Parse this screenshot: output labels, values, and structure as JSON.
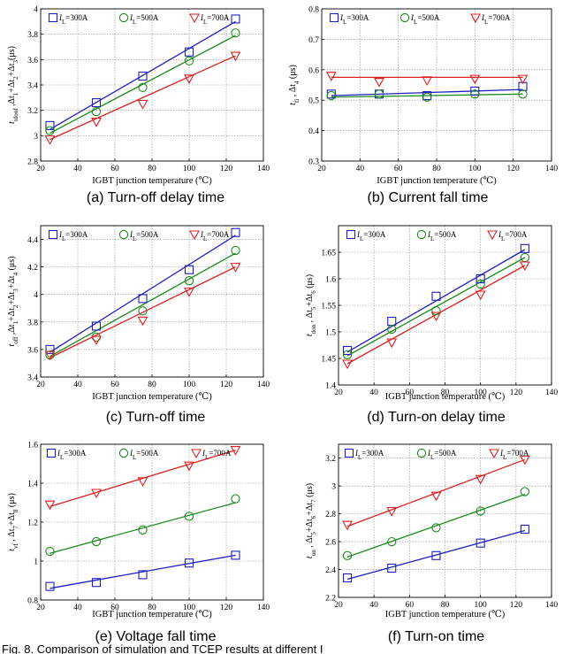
{
  "chart_data": [
    {
      "type": "scatter",
      "caption": "(a) Turn-off delay time",
      "xlabel": "IGBT junction temperature (℃)",
      "ylabel_parts": [
        {
          "t": "t",
          "it": true
        },
        {
          "t": "tdoof",
          "sub": true
        },
        {
          "t": " ,Δt"
        },
        {
          "t": "1",
          "sub": true
        },
        {
          "t": "+Δt"
        },
        {
          "t": "2",
          "sub": true
        },
        {
          "t": "+Δt"
        },
        {
          "t": "3",
          "sub": true
        },
        {
          "t": "(μs)"
        }
      ],
      "xlim": [
        20,
        140
      ],
      "ylim": [
        2.8,
        4
      ],
      "xticks": [
        20,
        40,
        60,
        80,
        100,
        120,
        140
      ],
      "yticks": [
        2.8,
        3,
        3.2,
        3.4,
        3.6,
        3.8,
        4
      ],
      "yticklabels": [
        "2.8",
        "3",
        "3.2",
        "3.4",
        "3.6",
        "3.8",
        "4"
      ],
      "grid": true,
      "legend_position": "top-left",
      "series": [
        {
          "name": "I_L=300A",
          "color": "#1f1fbf",
          "marker": "square",
          "x": [
            25,
            50,
            75,
            100,
            125
          ],
          "y": [
            3.08,
            3.26,
            3.47,
            3.66,
            3.92
          ],
          "fit": [
            [
              25,
              3.05
            ],
            [
              125,
              3.9
            ]
          ]
        },
        {
          "name": "I_L=500A",
          "color": "#1a8a1a",
          "marker": "circle",
          "x": [
            25,
            50,
            75,
            100,
            125
          ],
          "y": [
            3.04,
            3.19,
            3.38,
            3.59,
            3.81
          ],
          "fit": [
            [
              25,
              3.02
            ],
            [
              125,
              3.79
            ]
          ]
        },
        {
          "name": "I_L=700A",
          "color": "#e02020",
          "marker": "triangle",
          "x": [
            25,
            50,
            75,
            100,
            125
          ],
          "y": [
            2.97,
            3.11,
            3.25,
            3.45,
            3.63
          ],
          "fit": [
            [
              25,
              2.97
            ],
            [
              125,
              3.63
            ]
          ]
        }
      ]
    },
    {
      "type": "scatter",
      "caption": "(b) Current fall time",
      "xlabel": "IGBT junction temperature (℃)",
      "ylabel_parts": [
        {
          "t": "t",
          "it": true
        },
        {
          "t": "fi",
          "sub": true
        },
        {
          "t": " , Δt"
        },
        {
          "t": "4",
          "sub": true
        },
        {
          "t": " (μs)"
        }
      ],
      "xlim": [
        20,
        140
      ],
      "ylim": [
        0.3,
        0.8
      ],
      "xticks": [
        20,
        40,
        60,
        80,
        100,
        120,
        140
      ],
      "yticks": [
        0.3,
        0.4,
        0.5,
        0.6,
        0.7,
        0.8
      ],
      "yticklabels": [
        "0.3",
        "0.4",
        "0.5",
        "0.6",
        "0.7",
        "0.8"
      ],
      "grid": true,
      "legend_position": "top-left",
      "series": [
        {
          "name": "I_L=300A",
          "color": "#1f1fbf",
          "marker": "square",
          "x": [
            25,
            50,
            75,
            100,
            125
          ],
          "y": [
            0.52,
            0.52,
            0.515,
            0.53,
            0.545
          ],
          "fit": [
            [
              25,
              0.515
            ],
            [
              125,
              0.535
            ]
          ]
        },
        {
          "name": "I_L=500A",
          "color": "#1a8a1a",
          "marker": "circle",
          "x": [
            25,
            50,
            75,
            100,
            125
          ],
          "y": [
            0.515,
            0.52,
            0.51,
            0.52,
            0.52
          ],
          "fit": [
            [
              25,
              0.51
            ],
            [
              125,
              0.52
            ]
          ]
        },
        {
          "name": "I_L=700A",
          "color": "#e02020",
          "marker": "triangle",
          "x": [
            25,
            50,
            75,
            100,
            125
          ],
          "y": [
            0.58,
            0.56,
            0.565,
            0.57,
            0.57
          ],
          "fit": [
            [
              25,
              0.575
            ],
            [
              125,
              0.575
            ]
          ]
        }
      ]
    },
    {
      "type": "scatter",
      "caption": "(c) Turn-off time",
      "xlabel": "IGBT junction temperature (℃)",
      "ylabel_parts": [
        {
          "t": "t",
          "it": true
        },
        {
          "t": "off",
          "sub": true
        },
        {
          "t": " ,Δt"
        },
        {
          "t": "1",
          "sub": true
        },
        {
          "t": "+Δt"
        },
        {
          "t": "2",
          "sub": true
        },
        {
          "t": "+Δt"
        },
        {
          "t": "3",
          "sub": true
        },
        {
          "t": "+Δt"
        },
        {
          "t": "4",
          "sub": true
        },
        {
          "t": " (μs)"
        }
      ],
      "xlim": [
        20,
        140
      ],
      "ylim": [
        3.4,
        4.5
      ],
      "xticks": [
        20,
        40,
        60,
        80,
        100,
        120,
        140
      ],
      "yticks": [
        3.4,
        3.6,
        3.8,
        4,
        4.2,
        4.4
      ],
      "yticklabels": [
        "3.4",
        "3.6",
        "3.8",
        "4",
        "4.2",
        "4.4"
      ],
      "grid": true,
      "legend_position": "top-left",
      "series": [
        {
          "name": "I_L=300A",
          "color": "#1f1fbf",
          "marker": "square",
          "x": [
            25,
            50,
            75,
            100,
            125
          ],
          "y": [
            3.6,
            3.77,
            3.97,
            4.18,
            4.45
          ],
          "fit": [
            [
              25,
              3.58
            ],
            [
              125,
              4.43
            ]
          ]
        },
        {
          "name": "I_L=500A",
          "color": "#1a8a1a",
          "marker": "circle",
          "x": [
            25,
            50,
            75,
            100,
            125
          ],
          "y": [
            3.56,
            3.69,
            3.88,
            4.1,
            4.32
          ],
          "fit": [
            [
              25,
              3.55
            ],
            [
              125,
              4.3
            ]
          ]
        },
        {
          "name": "I_L=700A",
          "color": "#e02020",
          "marker": "triangle",
          "x": [
            25,
            50,
            75,
            100,
            125
          ],
          "y": [
            3.56,
            3.67,
            3.81,
            4.02,
            4.2
          ],
          "fit": [
            [
              25,
              3.54
            ],
            [
              125,
              4.2
            ]
          ]
        }
      ]
    },
    {
      "type": "scatter",
      "caption": "(d) Turn-on delay time",
      "xlabel": "IGBT junction temperature (℃)",
      "ylabel_parts": [
        {
          "t": "t",
          "it": true
        },
        {
          "t": "don",
          "sub": true
        },
        {
          "t": " , Δt"
        },
        {
          "t": "5",
          "sub": true
        },
        {
          "t": "+Δt"
        },
        {
          "t": "6",
          "sub": true
        },
        {
          "t": " (μs)"
        }
      ],
      "xlim": [
        20,
        140
      ],
      "ylim": [
        1.4,
        1.7
      ],
      "xticks": [
        20,
        40,
        60,
        80,
        100,
        120,
        140
      ],
      "yticks": [
        1.4,
        1.45,
        1.5,
        1.55,
        1.6,
        1.65
      ],
      "yticklabels": [
        "1.4",
        "1.45",
        "1.5",
        "1.55",
        "1.6",
        "1.65"
      ],
      "grid": true,
      "legend_position": "top-left",
      "series": [
        {
          "name": "I_L=300A",
          "color": "#1f1fbf",
          "marker": "square",
          "x": [
            25,
            50,
            75,
            100,
            125
          ],
          "y": [
            1.465,
            1.52,
            1.567,
            1.6,
            1.657
          ],
          "fit": [
            [
              25,
              1.462
            ],
            [
              125,
              1.655
            ]
          ]
        },
        {
          "name": "I_L=500A",
          "color": "#1a8a1a",
          "marker": "circle",
          "x": [
            25,
            50,
            75,
            100,
            125
          ],
          "y": [
            1.457,
            1.505,
            1.54,
            1.59,
            1.64
          ],
          "fit": [
            [
              25,
              1.455
            ],
            [
              125,
              1.64
            ]
          ]
        },
        {
          "name": "I_L=700A",
          "color": "#e02020",
          "marker": "triangle",
          "x": [
            25,
            50,
            75,
            100,
            125
          ],
          "y": [
            1.44,
            1.48,
            1.53,
            1.57,
            1.625
          ],
          "fit": [
            [
              25,
              1.44
            ],
            [
              125,
              1.625
            ]
          ]
        }
      ]
    },
    {
      "type": "scatter",
      "caption": "(e) Voltage fall time",
      "xlabel": "IGBT junction temperature (℃)",
      "ylabel_parts": [
        {
          "t": "t",
          "it": true
        },
        {
          "t": "vf",
          "sub": true
        },
        {
          "t": " , Δt"
        },
        {
          "t": "7",
          "sub": true
        },
        {
          "t": "+Δt"
        },
        {
          "t": "8",
          "sub": true
        },
        {
          "t": " (μs)"
        }
      ],
      "xlim": [
        20,
        140
      ],
      "ylim": [
        0.8,
        1.6
      ],
      "xticks": [
        20,
        40,
        60,
        80,
        100,
        120,
        140
      ],
      "yticks": [
        0.8,
        1,
        1.2,
        1.4,
        1.6
      ],
      "yticklabels": [
        "0.8",
        "1",
        "1.2",
        "1.4",
        "1.6"
      ],
      "grid": true,
      "legend_position": "top",
      "series": [
        {
          "name": "I_L=300A",
          "color": "#1f1fbf",
          "marker": "square",
          "x": [
            25,
            50,
            75,
            100,
            125
          ],
          "y": [
            0.87,
            0.89,
            0.93,
            0.99,
            1.03
          ],
          "fit": [
            [
              25,
              0.86
            ],
            [
              125,
              1.03
            ]
          ]
        },
        {
          "name": "I_L=500A",
          "color": "#1a8a1a",
          "marker": "circle",
          "x": [
            25,
            50,
            75,
            100,
            125
          ],
          "y": [
            1.05,
            1.1,
            1.16,
            1.23,
            1.32
          ],
          "fit": [
            [
              25,
              1.04
            ],
            [
              125,
              1.3
            ]
          ]
        },
        {
          "name": "I_L=700A",
          "color": "#e02020",
          "marker": "triangle",
          "x": [
            25,
            50,
            75,
            100,
            125
          ],
          "y": [
            1.29,
            1.35,
            1.41,
            1.49,
            1.57
          ],
          "fit": [
            [
              25,
              1.28
            ],
            [
              125,
              1.57
            ]
          ]
        }
      ]
    },
    {
      "type": "scatter",
      "caption": "(f) Turn-on time",
      "xlabel": "IGBT junction temperature (℃)",
      "ylabel_parts": [
        {
          "t": "t",
          "it": true
        },
        {
          "t": "on",
          "sub": true
        },
        {
          "t": " , Δt"
        },
        {
          "t": "5",
          "sub": true
        },
        {
          "t": "+Δt"
        },
        {
          "t": "6",
          "sub": true
        },
        {
          "t": "+Δt"
        },
        {
          "t": "7",
          "sub": true
        },
        {
          "t": " (μs)"
        }
      ],
      "xlim": [
        20,
        140
      ],
      "ylim": [
        2.2,
        3.3
      ],
      "xticks": [
        20,
        40,
        60,
        80,
        100,
        120,
        140
      ],
      "yticks": [
        2.2,
        2.4,
        2.6,
        2.8,
        3,
        3.2
      ],
      "yticklabels": [
        "2.2",
        "2.4",
        "2.6",
        "2.8",
        "3",
        "3.2"
      ],
      "grid": true,
      "legend_position": "top",
      "series": [
        {
          "name": "I_L=300A",
          "color": "#1f1fbf",
          "marker": "square",
          "x": [
            25,
            50,
            75,
            100,
            125
          ],
          "y": [
            2.34,
            2.41,
            2.5,
            2.59,
            2.69
          ],
          "fit": [
            [
              25,
              2.33
            ],
            [
              125,
              2.68
            ]
          ]
        },
        {
          "name": "I_L=500A",
          "color": "#1a8a1a",
          "marker": "circle",
          "x": [
            25,
            50,
            75,
            100,
            125
          ],
          "y": [
            2.5,
            2.6,
            2.7,
            2.82,
            2.96
          ],
          "fit": [
            [
              25,
              2.49
            ],
            [
              125,
              2.94
            ]
          ]
        },
        {
          "name": "I_L=700A",
          "color": "#e02020",
          "marker": "triangle",
          "x": [
            25,
            50,
            75,
            100,
            125
          ],
          "y": [
            2.72,
            2.82,
            2.93,
            3.05,
            3.19
          ],
          "fit": [
            [
              25,
              2.71
            ],
            [
              125,
              3.19
            ]
          ]
        }
      ]
    }
  ],
  "footer_text": "Fig. 8.   Comparison of simulation and TCEP results at different I"
}
